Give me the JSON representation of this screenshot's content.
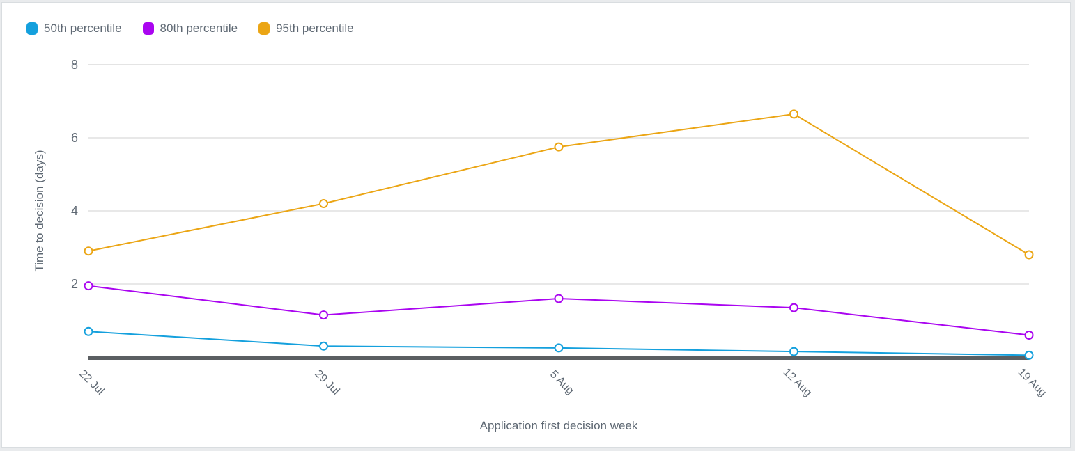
{
  "colors": {
    "page_background": "#e9ebed",
    "card_background": "#ffffff",
    "card_border": "#d9dde0",
    "gridline": "#e0e0e0",
    "axis_line": "#5b5f62",
    "text": "#5e6873",
    "series_50th": "#14a0dd",
    "series_80th": "#aa05f0",
    "series_95th": "#eba514"
  },
  "legend": {
    "items": [
      {
        "label": "50th percentile",
        "color": "#14a0dd"
      },
      {
        "label": "80th percentile",
        "color": "#aa05f0"
      },
      {
        "label": "95th percentile",
        "color": "#eba514"
      }
    ]
  },
  "chart_data": {
    "type": "line",
    "title": "",
    "xlabel": "Application first decision week",
    "ylabel": "Time to decision (days)",
    "categories": [
      "22 Jul",
      "29 Jul",
      "5 Aug",
      "12 Aug",
      "19 Aug"
    ],
    "series": [
      {
        "name": "50th percentile",
        "color": "#14a0dd",
        "values": [
          0.7,
          0.3,
          0.25,
          0.15,
          0.05
        ]
      },
      {
        "name": "80th percentile",
        "color": "#aa05f0",
        "values": [
          1.95,
          1.15,
          1.6,
          1.35,
          0.6
        ]
      },
      {
        "name": "95th percentile",
        "color": "#eba514",
        "values": [
          2.9,
          4.2,
          5.75,
          6.65,
          2.8
        ]
      }
    ],
    "ylim": [
      0,
      8
    ],
    "yticks": [
      2,
      4,
      6,
      8
    ],
    "grid": true,
    "legend_position": "top-left",
    "marker": "open-circle",
    "x_tick_rotation_deg": 45
  }
}
